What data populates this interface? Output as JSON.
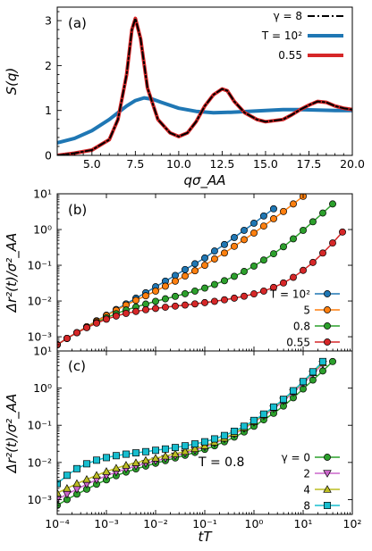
{
  "figure": {
    "panels": [
      {
        "label": "(a)",
        "xlabel": "qσ_AA",
        "ylabel": "S(q)",
        "legend_title": "γ = 8",
        "legend": [
          "T = 10²",
          "0.55"
        ],
        "xticks": [
          "5.0",
          "7.5",
          "10.0",
          "12.5",
          "15.0",
          "17.5",
          "20.0"
        ],
        "yticks": [
          "0",
          "1",
          "2",
          "3"
        ]
      },
      {
        "label": "(b)",
        "ylabel": "Δr²(t)/σ²_AA",
        "legend": [
          "T = 10²",
          "5",
          "0.8",
          "0.55"
        ],
        "yticks": [
          "10⁻³",
          "10⁻²",
          "10⁻¹",
          "10⁰",
          "10¹"
        ]
      },
      {
        "label": "(c)",
        "xlabel": "tT",
        "ylabel": "Δr²(t)/σ²_AA",
        "annotation": "T = 0.8",
        "legend": [
          "γ = 0",
          "2",
          "4",
          "8"
        ],
        "xticks": [
          "10⁻⁴",
          "10⁻³",
          "10⁻²",
          "10⁻¹",
          "10⁰",
          "10¹",
          "10²"
        ],
        "yticks": [
          "10⁻³",
          "10⁻²",
          "10⁻¹",
          "10⁰",
          "10¹"
        ]
      }
    ]
  },
  "chart_data": [
    {
      "type": "line",
      "title": "(a)",
      "xlabel": "qσ_AA",
      "ylabel": "S(q)",
      "xlim": [
        3.0,
        20.0
      ],
      "ylim": [
        0,
        3.3
      ],
      "legend_placement": "top-right",
      "series": [
        {
          "name": "γ = 8",
          "color": "#000000",
          "style": "dashdot",
          "x": [
            3.0,
            4.0,
            5.0,
            6.0,
            6.5,
            7.0,
            7.3,
            7.5,
            7.8,
            8.2,
            8.8,
            9.5,
            10.0,
            10.5,
            11.0,
            11.5,
            12.0,
            12.5,
            12.8,
            13.2,
            13.8,
            14.5,
            15.0,
            16.0,
            16.5,
            17.0,
            17.5,
            18.0,
            18.5,
            19.0,
            19.5,
            20.0
          ],
          "y": [
            0.0,
            0.05,
            0.12,
            0.35,
            0.8,
            1.8,
            2.8,
            3.05,
            2.6,
            1.5,
            0.8,
            0.5,
            0.42,
            0.5,
            0.75,
            1.1,
            1.35,
            1.48,
            1.44,
            1.2,
            0.95,
            0.8,
            0.75,
            0.8,
            0.9,
            1.02,
            1.12,
            1.2,
            1.18,
            1.1,
            1.05,
            1.02
          ]
        },
        {
          "name": "T = 10²",
          "color": "#1f77b4",
          "x": [
            3.0,
            4.0,
            5.0,
            6.0,
            6.5,
            7.0,
            7.5,
            8.0,
            8.5,
            9.0,
            10.0,
            11.0,
            12.0,
            13.0,
            14.0,
            15.0,
            16.0,
            17.0,
            18.0,
            19.0,
            20.0
          ],
          "y": [
            0.28,
            0.38,
            0.55,
            0.8,
            0.95,
            1.1,
            1.22,
            1.28,
            1.25,
            1.18,
            1.05,
            0.98,
            0.95,
            0.96,
            0.98,
            1.0,
            1.02,
            1.02,
            1.01,
            1.0,
            1.0
          ]
        },
        {
          "name": "0.55",
          "color": "#d62728",
          "x": [
            3.0,
            4.0,
            5.0,
            6.0,
            6.5,
            7.0,
            7.3,
            7.5,
            7.8,
            8.2,
            8.8,
            9.5,
            10.0,
            10.5,
            11.0,
            11.5,
            12.0,
            12.5,
            12.8,
            13.2,
            13.8,
            14.5,
            15.0,
            16.0,
            16.5,
            17.0,
            17.5,
            18.0,
            18.5,
            19.0,
            19.5,
            20.0
          ],
          "y": [
            0.0,
            0.05,
            0.12,
            0.35,
            0.8,
            1.8,
            2.8,
            3.05,
            2.6,
            1.5,
            0.8,
            0.5,
            0.42,
            0.5,
            0.75,
            1.1,
            1.35,
            1.48,
            1.44,
            1.2,
            0.95,
            0.8,
            0.75,
            0.8,
            0.9,
            1.02,
            1.12,
            1.2,
            1.18,
            1.1,
            1.05,
            1.02
          ]
        }
      ]
    },
    {
      "type": "line",
      "title": "(b)",
      "ylabel": "Δr²(t)/σ²_AA",
      "xscale": "log",
      "yscale": "log",
      "xlim": [
        0.0001,
        100
      ],
      "ylim": [
        0.0004,
        10
      ],
      "legend_placement": "lower-right",
      "series": [
        {
          "name": "T = 10²",
          "color": "#1f77b4",
          "x": [
            0.0001,
            0.000158,
            0.000251,
            0.000398,
            0.000631,
            0.001,
            0.00158,
            0.00251,
            0.00398,
            0.00631,
            0.01,
            0.0158,
            0.0251,
            0.0398,
            0.0631,
            0.1,
            0.158,
            0.251,
            0.398,
            0.631,
            1.0,
            1.58,
            2.51
          ],
          "y": [
            0.0006,
            0.0009,
            0.0013,
            0.0019,
            0.0028,
            0.004,
            0.0058,
            0.0083,
            0.012,
            0.017,
            0.025,
            0.036,
            0.052,
            0.076,
            0.11,
            0.16,
            0.25,
            0.38,
            0.6,
            0.95,
            1.5,
            2.4,
            3.8
          ]
        },
        {
          "name": "5",
          "color": "#ff7f0e",
          "x": [
            0.0001,
            0.000158,
            0.000251,
            0.000398,
            0.000631,
            0.001,
            0.00158,
            0.00251,
            0.00398,
            0.00631,
            0.01,
            0.0158,
            0.0251,
            0.0398,
            0.0631,
            0.1,
            0.158,
            0.251,
            0.398,
            0.631,
            1.0,
            1.58,
            2.51,
            3.98,
            6.31,
            10.0
          ],
          "y": [
            0.0006,
            0.0009,
            0.0013,
            0.0019,
            0.0027,
            0.0039,
            0.0055,
            0.0077,
            0.0105,
            0.014,
            0.019,
            0.026,
            0.036,
            0.05,
            0.07,
            0.1,
            0.15,
            0.22,
            0.34,
            0.52,
            0.8,
            1.25,
            2.0,
            3.2,
            5.2,
            8.5
          ]
        },
        {
          "name": "0.8",
          "color": "#2ca02c",
          "x": [
            0.0001,
            0.000158,
            0.000251,
            0.000398,
            0.000631,
            0.001,
            0.00158,
            0.00251,
            0.00398,
            0.00631,
            0.01,
            0.0158,
            0.0251,
            0.0398,
            0.0631,
            0.1,
            0.158,
            0.251,
            0.398,
            0.631,
            1.0,
            1.58,
            2.51,
            3.98,
            6.31,
            10.0,
            15.8,
            25.1,
            39.8
          ],
          "y": [
            0.0006,
            0.0009,
            0.0013,
            0.0018,
            0.0025,
            0.0034,
            0.0044,
            0.0056,
            0.0068,
            0.0082,
            0.0098,
            0.0115,
            0.0135,
            0.016,
            0.019,
            0.023,
            0.029,
            0.037,
            0.049,
            0.067,
            0.095,
            0.14,
            0.21,
            0.33,
            0.55,
            0.95,
            1.65,
            2.9,
            5.2
          ]
        },
        {
          "name": "0.55",
          "color": "#d62728",
          "x": [
            0.0001,
            0.000158,
            0.000251,
            0.000398,
            0.000631,
            0.001,
            0.00158,
            0.00251,
            0.00398,
            0.00631,
            0.01,
            0.0158,
            0.0251,
            0.0398,
            0.0631,
            0.1,
            0.158,
            0.251,
            0.398,
            0.631,
            1.0,
            1.58,
            2.51,
            3.98,
            6.31,
            10.0,
            15.8,
            25.1,
            39.8,
            63.1
          ],
          "y": [
            0.0006,
            0.0009,
            0.0013,
            0.0018,
            0.0024,
            0.0031,
            0.0038,
            0.0045,
            0.0051,
            0.0057,
            0.0062,
            0.0067,
            0.0072,
            0.0077,
            0.0083,
            0.009,
            0.0098,
            0.0108,
            0.012,
            0.0136,
            0.0158,
            0.019,
            0.024,
            0.032,
            0.046,
            0.072,
            0.12,
            0.22,
            0.42,
            0.85
          ]
        }
      ]
    },
    {
      "type": "line",
      "title": "(c)",
      "xlabel": "tT",
      "ylabel": "Δr²(t)/σ²_AA",
      "xscale": "log",
      "yscale": "log",
      "xlim": [
        0.0001,
        100
      ],
      "ylim": [
        0.0004,
        10
      ],
      "legend_placement": "lower-right",
      "series": [
        {
          "name": "γ = 0",
          "color": "#2ca02c",
          "marker": "circle",
          "x": [
            0.0001,
            0.000158,
            0.000251,
            0.000398,
            0.000631,
            0.001,
            0.00158,
            0.00251,
            0.00398,
            0.00631,
            0.01,
            0.0158,
            0.0251,
            0.0398,
            0.0631,
            0.1,
            0.158,
            0.251,
            0.398,
            0.631,
            1.0,
            1.58,
            2.51,
            3.98,
            6.31,
            10.0,
            15.8,
            25.1,
            39.8
          ],
          "y": [
            0.0007,
            0.001,
            0.0014,
            0.0019,
            0.0026,
            0.0034,
            0.0044,
            0.0055,
            0.0067,
            0.008,
            0.0095,
            0.0112,
            0.0132,
            0.0156,
            0.0186,
            0.0225,
            0.028,
            0.036,
            0.048,
            0.066,
            0.094,
            0.14,
            0.21,
            0.33,
            0.55,
            0.95,
            1.65,
            2.9,
            5.2
          ]
        },
        {
          "name": "2",
          "color": "#cc66cc",
          "marker": "triangle-down",
          "x": [
            0.0001,
            0.000158,
            0.000251,
            0.000398,
            0.000631,
            0.001,
            0.00158,
            0.00251,
            0.00398,
            0.00631,
            0.01,
            0.0158,
            0.0251,
            0.0398,
            0.0631,
            0.1,
            0.158,
            0.251,
            0.398,
            0.631,
            1.0,
            1.58,
            2.51,
            3.98,
            6.31,
            10.0,
            15.8,
            25.1
          ],
          "y": [
            0.001,
            0.0014,
            0.0019,
            0.0026,
            0.0034,
            0.0044,
            0.0055,
            0.0067,
            0.008,
            0.0095,
            0.011,
            0.0128,
            0.015,
            0.0178,
            0.0214,
            0.026,
            0.033,
            0.043,
            0.058,
            0.082,
            0.12,
            0.18,
            0.28,
            0.45,
            0.76,
            1.35,
            2.4,
            4.4
          ]
        },
        {
          "name": "4",
          "color": "#bcbd22",
          "marker": "triangle-up",
          "x": [
            0.0001,
            0.000158,
            0.000251,
            0.000398,
            0.000631,
            0.001,
            0.00158,
            0.00251,
            0.00398,
            0.00631,
            0.01,
            0.0158,
            0.0251,
            0.0398,
            0.0631,
            0.1,
            0.158,
            0.251,
            0.398,
            0.631,
            1.0,
            1.58,
            2.51,
            3.98,
            6.31,
            10.0,
            15.8,
            25.1
          ],
          "y": [
            0.0015,
            0.002,
            0.0027,
            0.0035,
            0.0045,
            0.0057,
            0.007,
            0.0084,
            0.0098,
            0.0114,
            0.013,
            0.0148,
            0.017,
            0.0198,
            0.0235,
            0.028,
            0.035,
            0.045,
            0.061,
            0.086,
            0.125,
            0.19,
            0.3,
            0.48,
            0.82,
            1.45,
            2.6,
            4.8
          ]
        },
        {
          "name": "8",
          "color": "#17becf",
          "marker": "square",
          "x": [
            0.0001,
            0.000158,
            0.000251,
            0.000398,
            0.000631,
            0.001,
            0.00158,
            0.00251,
            0.00398,
            0.00631,
            0.01,
            0.0158,
            0.0251,
            0.0398,
            0.0631,
            0.1,
            0.158,
            0.251,
            0.398,
            0.631,
            1.0,
            1.58,
            2.51,
            3.98,
            6.31,
            10.0,
            15.8,
            25.1
          ],
          "y": [
            0.0027,
            0.0045,
            0.0068,
            0.0092,
            0.0115,
            0.0135,
            0.0152,
            0.0167,
            0.0181,
            0.0195,
            0.0212,
            0.023,
            0.0252,
            0.028,
            0.0315,
            0.036,
            0.043,
            0.053,
            0.069,
            0.094,
            0.135,
            0.2,
            0.31,
            0.5,
            0.85,
            1.5,
            2.75,
            5.2
          ]
        }
      ]
    }
  ]
}
